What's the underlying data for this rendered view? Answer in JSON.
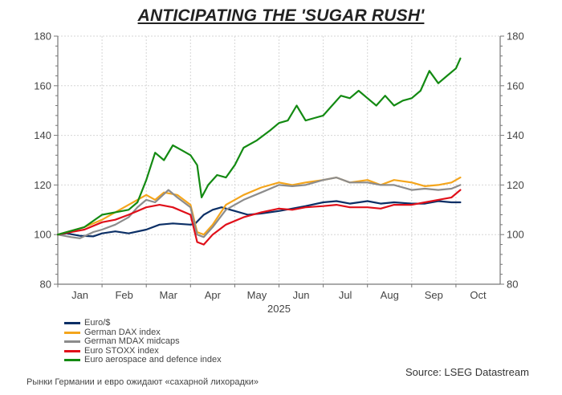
{
  "chart_data": {
    "type": "line",
    "title": "ANTICIPATING THE 'SUGAR RUSH'",
    "xlabel": "2025",
    "ylabel": "",
    "x_unit": "months since Jan 1, 2025",
    "xlim": [
      0,
      10
    ],
    "ylim": [
      80,
      180
    ],
    "yticks": [
      80,
      100,
      120,
      140,
      160,
      180
    ],
    "right_axis_yticks": [
      80,
      100,
      120,
      140,
      160,
      180
    ],
    "month_labels": [
      "Jan",
      "Feb",
      "Mar",
      "Apr",
      "May",
      "Jun",
      "Jul",
      "Aug",
      "Sep",
      "Oct"
    ],
    "grid": true,
    "legend_placement": "bottom-left",
    "series": [
      {
        "name": "Euro/$",
        "color": "#0b2f66",
        "points": [
          [
            0,
            100
          ],
          [
            0.2,
            100.5
          ],
          [
            0.5,
            99.5
          ],
          [
            0.8,
            99.3
          ],
          [
            1.0,
            100.5
          ],
          [
            1.3,
            101.3
          ],
          [
            1.6,
            100.5
          ],
          [
            2.0,
            102
          ],
          [
            2.3,
            104
          ],
          [
            2.6,
            104.5
          ],
          [
            3.0,
            104
          ],
          [
            3.1,
            104.3
          ],
          [
            3.3,
            108
          ],
          [
            3.5,
            110
          ],
          [
            3.7,
            111
          ],
          [
            4.0,
            109.5
          ],
          [
            4.3,
            108
          ],
          [
            4.6,
            108.5
          ],
          [
            5.0,
            109.5
          ],
          [
            5.3,
            110.5
          ],
          [
            5.6,
            111.5
          ],
          [
            6.0,
            113
          ],
          [
            6.3,
            113.5
          ],
          [
            6.6,
            112.5
          ],
          [
            7.0,
            113.5
          ],
          [
            7.3,
            112.5
          ],
          [
            7.6,
            113
          ],
          [
            8.0,
            112.5
          ],
          [
            8.3,
            112.5
          ],
          [
            8.6,
            113.5
          ],
          [
            8.9,
            113
          ],
          [
            9.1,
            113
          ]
        ]
      },
      {
        "name": "German DAX index",
        "color": "#f4a51c",
        "points": [
          [
            0,
            100
          ],
          [
            0.3,
            101.5
          ],
          [
            0.6,
            103
          ],
          [
            1.0,
            106
          ],
          [
            1.3,
            109
          ],
          [
            1.6,
            112
          ],
          [
            2.0,
            116
          ],
          [
            2.2,
            114
          ],
          [
            2.4,
            117
          ],
          [
            2.7,
            116
          ],
          [
            3.0,
            112
          ],
          [
            3.15,
            101
          ],
          [
            3.3,
            100
          ],
          [
            3.5,
            104
          ],
          [
            3.8,
            112
          ],
          [
            4.2,
            116
          ],
          [
            4.6,
            119
          ],
          [
            5.0,
            121
          ],
          [
            5.3,
            120
          ],
          [
            5.6,
            121
          ],
          [
            6.0,
            122
          ],
          [
            6.3,
            123
          ],
          [
            6.6,
            121
          ],
          [
            7.0,
            122
          ],
          [
            7.3,
            120
          ],
          [
            7.6,
            122
          ],
          [
            8.0,
            121
          ],
          [
            8.3,
            119.5
          ],
          [
            8.6,
            120
          ],
          [
            8.9,
            121
          ],
          [
            9.1,
            123
          ]
        ]
      },
      {
        "name": "German MDAX midcaps",
        "color": "#8c8c8c",
        "points": [
          [
            0,
            100
          ],
          [
            0.3,
            99
          ],
          [
            0.5,
            98.5
          ],
          [
            0.8,
            101
          ],
          [
            1.0,
            102
          ],
          [
            1.3,
            104
          ],
          [
            1.6,
            107
          ],
          [
            1.8,
            111
          ],
          [
            2.0,
            114
          ],
          [
            2.2,
            113
          ],
          [
            2.5,
            118
          ],
          [
            2.7,
            115
          ],
          [
            3.0,
            111
          ],
          [
            3.15,
            100
          ],
          [
            3.3,
            99
          ],
          [
            3.5,
            103
          ],
          [
            3.8,
            110
          ],
          [
            4.2,
            114
          ],
          [
            4.6,
            117
          ],
          [
            5.0,
            120
          ],
          [
            5.3,
            119.5
          ],
          [
            5.6,
            120
          ],
          [
            6.0,
            122
          ],
          [
            6.3,
            123
          ],
          [
            6.6,
            121
          ],
          [
            7.0,
            121
          ],
          [
            7.3,
            120
          ],
          [
            7.6,
            120
          ],
          [
            8.0,
            118
          ],
          [
            8.3,
            118.5
          ],
          [
            8.6,
            118
          ],
          [
            8.9,
            118.5
          ],
          [
            9.1,
            120
          ]
        ]
      },
      {
        "name": "Euro STOXX index",
        "color": "#e0101a",
        "points": [
          [
            0,
            100
          ],
          [
            0.3,
            101
          ],
          [
            0.6,
            102
          ],
          [
            1.0,
            105
          ],
          [
            1.3,
            106
          ],
          [
            1.6,
            108
          ],
          [
            2.0,
            111
          ],
          [
            2.3,
            112
          ],
          [
            2.6,
            111
          ],
          [
            3.0,
            108
          ],
          [
            3.15,
            97
          ],
          [
            3.3,
            96
          ],
          [
            3.5,
            100
          ],
          [
            3.8,
            104
          ],
          [
            4.2,
            107
          ],
          [
            4.6,
            109
          ],
          [
            5.0,
            110.5
          ],
          [
            5.3,
            110
          ],
          [
            5.6,
            111
          ],
          [
            6.0,
            111.5
          ],
          [
            6.3,
            112
          ],
          [
            6.6,
            111
          ],
          [
            7.0,
            111
          ],
          [
            7.3,
            110.5
          ],
          [
            7.6,
            112
          ],
          [
            8.0,
            112
          ],
          [
            8.3,
            113
          ],
          [
            8.6,
            114
          ],
          [
            8.9,
            115
          ],
          [
            9.1,
            118
          ]
        ]
      },
      {
        "name": "Euro aerospace and defence index",
        "color": "#138a12",
        "points": [
          [
            0,
            100
          ],
          [
            0.3,
            101.5
          ],
          [
            0.6,
            103
          ],
          [
            1.0,
            108
          ],
          [
            1.3,
            109
          ],
          [
            1.6,
            110
          ],
          [
            1.8,
            113
          ],
          [
            2.0,
            122
          ],
          [
            2.2,
            133
          ],
          [
            2.4,
            130
          ],
          [
            2.6,
            136
          ],
          [
            2.8,
            134
          ],
          [
            3.0,
            132
          ],
          [
            3.15,
            128
          ],
          [
            3.25,
            115
          ],
          [
            3.4,
            120
          ],
          [
            3.6,
            124
          ],
          [
            3.8,
            123
          ],
          [
            4.0,
            128
          ],
          [
            4.2,
            135
          ],
          [
            4.5,
            138
          ],
          [
            4.8,
            142
          ],
          [
            5.0,
            145
          ],
          [
            5.2,
            146
          ],
          [
            5.4,
            152
          ],
          [
            5.6,
            146
          ],
          [
            5.8,
            147
          ],
          [
            6.0,
            148
          ],
          [
            6.2,
            152
          ],
          [
            6.4,
            156
          ],
          [
            6.6,
            155
          ],
          [
            6.8,
            158
          ],
          [
            7.0,
            155
          ],
          [
            7.2,
            152
          ],
          [
            7.4,
            156
          ],
          [
            7.6,
            152
          ],
          [
            7.8,
            154
          ],
          [
            8.0,
            155
          ],
          [
            8.2,
            158
          ],
          [
            8.4,
            166
          ],
          [
            8.6,
            161
          ],
          [
            8.8,
            164
          ],
          [
            9.0,
            167
          ],
          [
            9.1,
            171
          ]
        ]
      }
    ]
  },
  "legend": {
    "items": [
      {
        "label": "Euro/$",
        "color": "#0b2f66"
      },
      {
        "label": "German DAX index",
        "color": "#f4a51c"
      },
      {
        "label": "German MDAX midcaps",
        "color": "#8c8c8c"
      },
      {
        "label": "Euro STOXX index",
        "color": "#e0101a"
      },
      {
        "label": "Euro aerospace and defence index",
        "color": "#138a12"
      }
    ]
  },
  "source": "Source: LSEG Datastream",
  "caption": "Рынки Германии и евро ожидают «сахарной лихорадки»"
}
